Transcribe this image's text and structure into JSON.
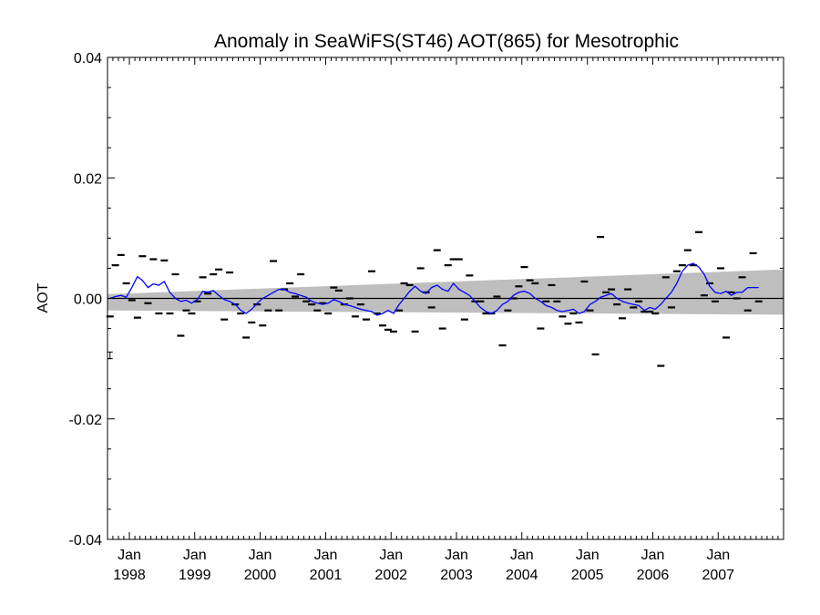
{
  "chart_data": {
    "type": "line",
    "title": "Anomaly in SeaWiFS(ST46) AOT(865) for Mesotrophic",
    "xlabel": "",
    "ylabel": "AOT",
    "ylim": [
      -0.04,
      0.04
    ],
    "xlim": [
      "1997-09-01",
      "2008-01-01"
    ],
    "yticks": [
      {
        "value": -0.04,
        "label": "-0.04"
      },
      {
        "value": -0.02,
        "label": "-0.02"
      },
      {
        "value": 0.0,
        "label": "0.00"
      },
      {
        "value": 0.02,
        "label": "0.02"
      },
      {
        "value": 0.04,
        "label": "0.04"
      }
    ],
    "xticks": [
      {
        "value": "1998-01-01",
        "month": "Jan",
        "year": "1998"
      },
      {
        "value": "1999-01-01",
        "month": "Jan",
        "year": "1999"
      },
      {
        "value": "2000-01-01",
        "month": "Jan",
        "year": "2000"
      },
      {
        "value": "2001-01-01",
        "month": "Jan",
        "year": "2001"
      },
      {
        "value": "2002-01-01",
        "month": "Jan",
        "year": "2002"
      },
      {
        "value": "2003-01-01",
        "month": "Jan",
        "year": "2003"
      },
      {
        "value": "2004-01-01",
        "month": "Jan",
        "year": "2004"
      },
      {
        "value": "2005-01-01",
        "month": "Jan",
        "year": "2005"
      },
      {
        "value": "2006-01-01",
        "month": "Jan",
        "year": "2006"
      },
      {
        "value": "2007-01-01",
        "month": "Jan",
        "year": "2007"
      }
    ],
    "zero_line": 0.0,
    "grid": false,
    "trend_band": {
      "color": "#bebebe",
      "upper": [
        [
          "1997-09-01",
          0.0007
        ],
        [
          "2008-01-01",
          0.0048
        ]
      ],
      "lower": [
        [
          "1997-09-01",
          -0.002
        ],
        [
          "2008-01-01",
          -0.0027
        ]
      ]
    },
    "error_bar": {
      "x": "1997-09-15",
      "y": -0.0095,
      "low": -0.01,
      "high": -0.0089
    },
    "series": [
      {
        "style": "dash-markers",
        "color": "#000000",
        "points": [
          [
            "1997-09-15",
            -0.003
          ],
          [
            "1997-10-15",
            0.0055
          ],
          [
            "1997-11-15",
            0.0072
          ],
          [
            "1997-12-15",
            0.0025
          ],
          [
            "1998-01-15",
            -0.0003
          ],
          [
            "1998-02-15",
            -0.0032
          ],
          [
            "1998-03-15",
            0.007
          ],
          [
            "1998-04-15",
            -0.0008
          ],
          [
            "1998-05-15",
            0.0065
          ],
          [
            "1998-06-15",
            -0.0025
          ],
          [
            "1998-07-15",
            0.0063
          ],
          [
            "1998-08-15",
            -0.0025
          ],
          [
            "1998-09-15",
            0.004
          ],
          [
            "1998-10-15",
            -0.0062
          ],
          [
            "1998-11-15",
            -0.002
          ],
          [
            "1998-12-15",
            -0.0025
          ],
          [
            "1999-01-15",
            -0.0005
          ],
          [
            "1999-02-15",
            0.0035
          ],
          [
            "1999-03-15",
            0.0008
          ],
          [
            "1999-04-15",
            0.004
          ],
          [
            "1999-05-15",
            0.0048
          ],
          [
            "1999-06-15",
            -0.0035
          ],
          [
            "1999-07-15",
            0.0043
          ],
          [
            "1999-08-15",
            -0.001
          ],
          [
            "1999-09-15",
            -0.0025
          ],
          [
            "1999-10-15",
            -0.0065
          ],
          [
            "1999-11-15",
            -0.004
          ],
          [
            "1999-12-15",
            -0.001
          ],
          [
            "2000-01-15",
            -0.0045
          ],
          [
            "2000-02-15",
            -0.002
          ],
          [
            "2000-03-15",
            0.0062
          ],
          [
            "2000-04-15",
            -0.002
          ],
          [
            "2000-05-15",
            0.0015
          ],
          [
            "2000-06-15",
            0.0025
          ],
          [
            "2000-07-15",
            0.0003
          ],
          [
            "2000-08-15",
            0.004
          ],
          [
            "2000-09-15",
            -0.0005
          ],
          [
            "2000-10-15",
            -0.001
          ],
          [
            "2000-11-15",
            -0.002
          ],
          [
            "2000-12-15",
            -0.0008
          ],
          [
            "2001-01-15",
            -0.0025
          ],
          [
            "2001-02-15",
            0.0018
          ],
          [
            "2001-03-15",
            0.0013
          ],
          [
            "2001-04-15",
            -0.001
          ],
          [
            "2001-05-15",
            0.0
          ],
          [
            "2001-06-15",
            -0.003
          ],
          [
            "2001-07-15",
            -0.001
          ],
          [
            "2001-08-15",
            -0.0035
          ],
          [
            "2001-09-15",
            0.0045
          ],
          [
            "2001-10-15",
            -0.0025
          ],
          [
            "2001-11-15",
            -0.0045
          ],
          [
            "2001-12-15",
            -0.0052
          ],
          [
            "2002-01-15",
            -0.0055
          ],
          [
            "2002-02-15",
            -0.002
          ],
          [
            "2002-03-15",
            0.0025
          ],
          [
            "2002-04-15",
            0.0022
          ],
          [
            "2002-05-15",
            -0.0055
          ],
          [
            "2002-06-15",
            0.005
          ],
          [
            "2002-07-15",
            0.001
          ],
          [
            "2002-08-15",
            -0.0015
          ],
          [
            "2002-09-15",
            0.008
          ],
          [
            "2002-10-15",
            -0.005
          ],
          [
            "2002-11-15",
            0.0055
          ],
          [
            "2002-12-15",
            0.0065
          ],
          [
            "2003-01-15",
            0.0065
          ],
          [
            "2003-02-15",
            -0.0035
          ],
          [
            "2003-03-15",
            0.0038
          ],
          [
            "2003-04-15",
            -0.0005
          ],
          [
            "2003-05-15",
            -0.0005
          ],
          [
            "2003-06-15",
            -0.0025
          ],
          [
            "2003-07-15",
            -0.0025
          ],
          [
            "2003-08-15",
            0.0003
          ],
          [
            "2003-09-15",
            -0.0078
          ],
          [
            "2003-10-15",
            -0.002
          ],
          [
            "2003-11-15",
            0.0
          ],
          [
            "2003-12-15",
            0.002
          ],
          [
            "2004-01-15",
            0.0052
          ],
          [
            "2004-02-15",
            0.003
          ],
          [
            "2004-03-15",
            0.0025
          ],
          [
            "2004-04-15",
            -0.005
          ],
          [
            "2004-05-15",
            -0.0005
          ],
          [
            "2004-06-15",
            0.0022
          ],
          [
            "2004-07-15",
            -0.0005
          ],
          [
            "2004-08-15",
            -0.003
          ],
          [
            "2004-09-15",
            -0.0042
          ],
          [
            "2004-10-15",
            -0.0025
          ],
          [
            "2004-11-15",
            -0.004
          ],
          [
            "2004-12-15",
            0.0028
          ],
          [
            "2005-01-15",
            -0.002
          ],
          [
            "2005-02-15",
            -0.0093
          ],
          [
            "2005-03-15",
            0.0102
          ],
          [
            "2005-04-15",
            0.001
          ],
          [
            "2005-05-15",
            0.0015
          ],
          [
            "2005-06-15",
            -0.001
          ],
          [
            "2005-07-15",
            -0.0033
          ],
          [
            "2005-08-15",
            0.0015
          ],
          [
            "2005-09-15",
            -0.0015
          ],
          [
            "2005-10-15",
            -0.0005
          ],
          [
            "2005-11-15",
            -0.0022
          ],
          [
            "2005-12-15",
            -0.0022
          ],
          [
            "2006-01-15",
            -0.0025
          ],
          [
            "2006-02-15",
            -0.0112
          ],
          [
            "2006-03-15",
            0.0035
          ],
          [
            "2006-04-15",
            -0.0015
          ],
          [
            "2006-05-15",
            0.0045
          ],
          [
            "2006-06-15",
            0.0055
          ],
          [
            "2006-07-15",
            0.008
          ],
          [
            "2006-08-15",
            0.0055
          ],
          [
            "2006-09-15",
            0.011
          ],
          [
            "2006-10-15",
            0.0005
          ],
          [
            "2006-11-15",
            0.0025
          ],
          [
            "2006-12-15",
            -0.0005
          ],
          [
            "2007-01-15",
            0.005
          ],
          [
            "2007-02-15",
            -0.0065
          ],
          [
            "2007-03-15",
            0.001
          ],
          [
            "2007-04-15",
            0.0
          ],
          [
            "2007-05-15",
            0.0035
          ],
          [
            "2007-06-15",
            -0.002
          ],
          [
            "2007-07-15",
            0.0075
          ],
          [
            "2007-08-15",
            -0.0005
          ]
        ]
      },
      {
        "style": "line",
        "color": "#0000ff",
        "points": [
          [
            "1997-09-15",
            0.0
          ],
          [
            "1997-10-15",
            0.0003
          ],
          [
            "1997-11-15",
            0.0005
          ],
          [
            "1997-12-15",
            0.0002
          ],
          [
            "1998-01-15",
            0.0018
          ],
          [
            "1998-02-15",
            0.0036
          ],
          [
            "1998-03-15",
            0.003
          ],
          [
            "1998-04-15",
            0.0018
          ],
          [
            "1998-05-15",
            0.0024
          ],
          [
            "1998-06-15",
            0.0022
          ],
          [
            "1998-07-15",
            0.0028
          ],
          [
            "1998-08-15",
            0.001
          ],
          [
            "1998-09-15",
            0.0
          ],
          [
            "1998-10-15",
            -0.0005
          ],
          [
            "1998-11-15",
            -0.0003
          ],
          [
            "1998-12-15",
            -0.0008
          ],
          [
            "1999-01-15",
            -0.0002
          ],
          [
            "1999-02-15",
            0.0012
          ],
          [
            "1999-03-15",
            0.001
          ],
          [
            "1999-04-15",
            0.0013
          ],
          [
            "1999-05-15",
            0.0005
          ],
          [
            "1999-06-15",
            -0.0002
          ],
          [
            "1999-07-15",
            -0.0005
          ],
          [
            "1999-08-15",
            -0.001
          ],
          [
            "1999-09-15",
            -0.002
          ],
          [
            "1999-10-15",
            -0.0025
          ],
          [
            "1999-11-15",
            -0.0018
          ],
          [
            "1999-12-15",
            -0.0008
          ],
          [
            "2000-01-15",
            0.0
          ],
          [
            "2000-02-15",
            0.0005
          ],
          [
            "2000-03-15",
            0.001
          ],
          [
            "2000-04-15",
            0.0015
          ],
          [
            "2000-05-15",
            0.0015
          ],
          [
            "2000-06-15",
            0.001
          ],
          [
            "2000-07-15",
            0.0008
          ],
          [
            "2000-08-15",
            0.0005
          ],
          [
            "2000-09-15",
            0.0002
          ],
          [
            "2000-10-15",
            -0.0005
          ],
          [
            "2000-11-15",
            -0.0008
          ],
          [
            "2000-12-15",
            -0.001
          ],
          [
            "2001-01-15",
            -0.0008
          ],
          [
            "2001-02-15",
            -0.0002
          ],
          [
            "2001-03-15",
            -0.0005
          ],
          [
            "2001-04-15",
            -0.001
          ],
          [
            "2001-05-15",
            -0.0012
          ],
          [
            "2001-06-15",
            -0.0015
          ],
          [
            "2001-07-15",
            -0.0018
          ],
          [
            "2001-08-15",
            -0.002
          ],
          [
            "2001-09-15",
            -0.0022
          ],
          [
            "2001-10-15",
            -0.0028
          ],
          [
            "2001-11-15",
            -0.0025
          ],
          [
            "2001-12-15",
            -0.002
          ],
          [
            "2002-01-15",
            -0.0025
          ],
          [
            "2002-02-15",
            -0.001
          ],
          [
            "2002-03-15",
            0.0
          ],
          [
            "2002-04-15",
            0.0012
          ],
          [
            "2002-05-15",
            0.002
          ],
          [
            "2002-06-15",
            0.0012
          ],
          [
            "2002-07-15",
            0.0008
          ],
          [
            "2002-08-15",
            0.0018
          ],
          [
            "2002-09-15",
            0.0022
          ],
          [
            "2002-10-15",
            0.0015
          ],
          [
            "2002-11-15",
            0.0012
          ],
          [
            "2002-12-15",
            0.0025
          ],
          [
            "2003-01-15",
            0.0015
          ],
          [
            "2003-02-15",
            0.001
          ],
          [
            "2003-03-15",
            0.0005
          ],
          [
            "2003-04-15",
            -0.0005
          ],
          [
            "2003-05-15",
            -0.0015
          ],
          [
            "2003-06-15",
            -0.0022
          ],
          [
            "2003-07-15",
            -0.0025
          ],
          [
            "2003-08-15",
            -0.002
          ],
          [
            "2003-09-15",
            -0.001
          ],
          [
            "2003-10-15",
            -0.0005
          ],
          [
            "2003-11-15",
            0.0005
          ],
          [
            "2003-12-15",
            0.001
          ],
          [
            "2004-01-15",
            0.0012
          ],
          [
            "2004-02-15",
            0.0008
          ],
          [
            "2004-03-15",
            0.0
          ],
          [
            "2004-04-15",
            -0.0005
          ],
          [
            "2004-05-15",
            -0.0012
          ],
          [
            "2004-06-15",
            -0.0015
          ],
          [
            "2004-07-15",
            -0.002
          ],
          [
            "2004-08-15",
            -0.0022
          ],
          [
            "2004-09-15",
            -0.002
          ],
          [
            "2004-10-15",
            -0.0018
          ],
          [
            "2004-11-15",
            -0.0025
          ],
          [
            "2004-12-15",
            -0.0022
          ],
          [
            "2005-01-15",
            -0.001
          ],
          [
            "2005-02-15",
            -0.0005
          ],
          [
            "2005-03-15",
            0.0002
          ],
          [
            "2005-04-15",
            0.0005
          ],
          [
            "2005-05-15",
            0.0008
          ],
          [
            "2005-06-15",
            0.0
          ],
          [
            "2005-07-15",
            -0.0005
          ],
          [
            "2005-08-15",
            -0.0008
          ],
          [
            "2005-09-15",
            -0.001
          ],
          [
            "2005-10-15",
            -0.0012
          ],
          [
            "2005-11-15",
            -0.002
          ],
          [
            "2005-12-15",
            -0.0015
          ],
          [
            "2006-01-15",
            -0.0018
          ],
          [
            "2006-02-15",
            -0.001
          ],
          [
            "2006-03-15",
            0.0
          ],
          [
            "2006-04-15",
            0.001
          ],
          [
            "2006-05-15",
            0.0025
          ],
          [
            "2006-06-15",
            0.0045
          ],
          [
            "2006-07-15",
            0.0055
          ],
          [
            "2006-08-15",
            0.0058
          ],
          [
            "2006-09-15",
            0.0052
          ],
          [
            "2006-10-15",
            0.004
          ],
          [
            "2006-11-15",
            0.002
          ],
          [
            "2006-12-15",
            0.001
          ],
          [
            "2007-01-15",
            0.0008
          ],
          [
            "2007-02-15",
            0.0012
          ],
          [
            "2007-03-15",
            0.0005
          ],
          [
            "2007-04-15",
            0.001
          ],
          [
            "2007-05-15",
            0.001
          ],
          [
            "2007-06-15",
            0.0018
          ],
          [
            "2007-07-15",
            0.0018
          ],
          [
            "2007-08-15",
            0.0018
          ]
        ]
      }
    ]
  }
}
